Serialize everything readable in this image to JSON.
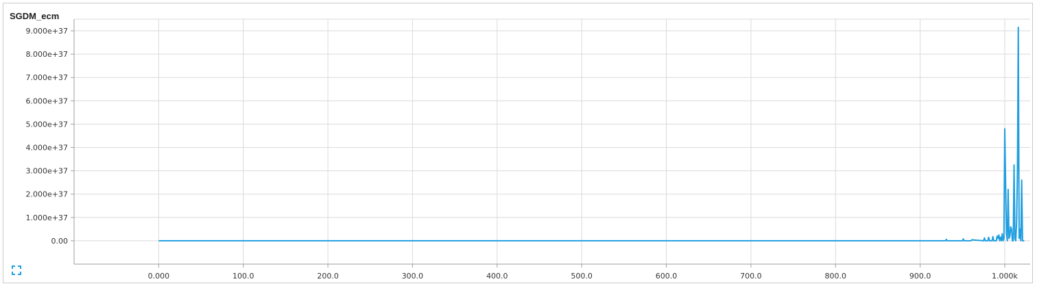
{
  "panel": {
    "title": "SGDM_ecm",
    "expand_icon": "fullscreen-icon"
  },
  "colors": {
    "series": "#1f9ee0",
    "grid": "#dadada",
    "axis": "#9e9e9e"
  },
  "chart_data": {
    "type": "line",
    "title": "SGDM_ecm",
    "xlabel": "",
    "ylabel": "",
    "xlim": [
      -100,
      1030
    ],
    "ylim": [
      -1e+37,
      9.5e+37
    ],
    "grid": true,
    "x_ticks": [
      0,
      100,
      200,
      300,
      400,
      500,
      600,
      700,
      800,
      900,
      1000
    ],
    "x_tick_labels": [
      "0.000",
      "100.0",
      "200.0",
      "300.0",
      "400.0",
      "500.0",
      "600.0",
      "700.0",
      "800.0",
      "900.0",
      "1.000k"
    ],
    "y_ticks": [
      0,
      1e+37,
      2e+37,
      3e+37,
      4e+37,
      5e+37,
      6e+37,
      7e+37,
      8e+37,
      9e+37
    ],
    "y_tick_labels": [
      "0.00",
      "1.000e+37",
      "2.000e+37",
      "3.000e+37",
      "4.000e+37",
      "5.000e+37",
      "6.000e+37",
      "7.000e+37",
      "8.000e+37",
      "9.000e+37"
    ],
    "series": [
      {
        "x": [
          0,
          100,
          200,
          300,
          400,
          500,
          600,
          700,
          800,
          900,
          930,
          931,
          932,
          950,
          951,
          952,
          960,
          961,
          975,
          976,
          977,
          980,
          981,
          982,
          985,
          986,
          987,
          990,
          991,
          992,
          993,
          994,
          995,
          996,
          997,
          998,
          999,
          1000,
          1001,
          1002,
          1003,
          1004,
          1005,
          1006,
          1007,
          1008,
          1009,
          1010,
          1011,
          1012,
          1013,
          1014,
          1015,
          1016,
          1017,
          1018,
          1019,
          1020,
          1021,
          1022,
          1023
        ],
        "y": [
          0,
          0,
          0,
          0,
          0,
          0,
          0,
          0,
          0,
          0,
          0,
          6e+35,
          0,
          0,
          8e+35,
          0,
          0,
          4e+35,
          0,
          1.2e+36,
          0,
          0,
          1.5e+36,
          0,
          0,
          1.8e+36,
          0,
          0,
          2e+36,
          1e+36,
          2.5e+36,
          0,
          1.5e+36,
          0,
          3e+36,
          0,
          1e+36,
          4.8e+37,
          2.5e+37,
          3e+36,
          0,
          2.2e+37,
          1e+36,
          2e+36,
          6e+36,
          5e+36,
          0,
          0,
          3.25e+37,
          1e+36,
          0,
          8e+36,
          3e+37,
          9.15e+37,
          1e+36,
          5e+36,
          0,
          2.6e+37,
          0,
          0,
          0
        ]
      }
    ]
  }
}
